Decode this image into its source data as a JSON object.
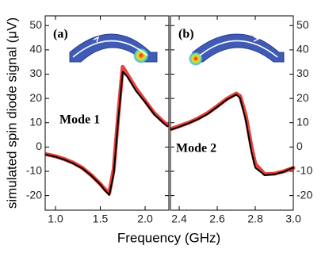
{
  "chart_data": [
    {
      "type": "line",
      "panel_label": "(a)",
      "annotation": "Mode 1",
      "ylabel": "simulated spin diode signal (μV)",
      "xlabel": "Frequency (GHz)",
      "xlim": [
        0.885,
        2.265
      ],
      "xticks": [
        {
          "value": 1.0,
          "label": "1.0"
        },
        {
          "value": 1.5,
          "label": "1.5"
        },
        {
          "value": 2.0,
          "label": "2.0"
        }
      ],
      "ylim": [
        -26,
        54
      ],
      "yticks": [
        -20,
        -10,
        0,
        10,
        20,
        30,
        40,
        50
      ],
      "x": [
        0.9,
        1.0,
        1.1,
        1.2,
        1.3,
        1.4,
        1.5,
        1.55,
        1.6,
        1.65,
        1.7,
        1.75,
        1.8,
        1.9,
        2.0,
        2.1,
        2.2,
        2.25
      ],
      "series": [
        {
          "color": "#e8413c",
          "values": [
            -3,
            -3.8,
            -5,
            -6.5,
            -8.6,
            -11.6,
            -15.2,
            -17.4,
            -19,
            -9,
            13,
            33,
            30,
            24,
            19,
            14,
            10.5,
            9
          ]
        },
        {
          "color": "#000000",
          "values": [
            -3.2,
            -4,
            -5.2,
            -6.8,
            -8.8,
            -11.8,
            -15.4,
            -17.8,
            -19.8,
            -11,
            11,
            31,
            29,
            23,
            18.5,
            13.5,
            10,
            8.5
          ]
        }
      ]
    },
    {
      "type": "line",
      "panel_label": "(b)",
      "annotation": "Mode 2",
      "xlim": [
        2.354,
        3.0
      ],
      "xticks": [
        {
          "value": 2.4,
          "label": "2.4"
        },
        {
          "value": 2.6,
          "label": "2.6"
        },
        {
          "value": 2.8,
          "label": "2.8"
        },
        {
          "value": 3.0,
          "label": "3.0"
        }
      ],
      "ylim": [
        -26,
        54
      ],
      "yticks": [
        -20,
        -10,
        0,
        10,
        20,
        30,
        40,
        50
      ],
      "x": [
        2.36,
        2.4,
        2.45,
        2.5,
        2.55,
        2.6,
        2.65,
        2.7,
        2.72,
        2.75,
        2.78,
        2.8,
        2.85,
        2.9,
        2.95,
        3.0
      ],
      "series": [
        {
          "color": "#e8413c",
          "values": [
            7.5,
            8.6,
            10,
            11.8,
            14,
            16.8,
            19.8,
            22,
            21,
            13,
            0,
            -7,
            -11.2,
            -11,
            -10,
            -8.6
          ]
        },
        {
          "color": "#000000",
          "values": [
            7.2,
            8.3,
            9.8,
            11.5,
            13.6,
            16.5,
            19.5,
            21.6,
            20.2,
            11,
            -2,
            -8.5,
            -11.6,
            -11.2,
            -10.2,
            -8.4
          ]
        }
      ]
    }
  ]
}
